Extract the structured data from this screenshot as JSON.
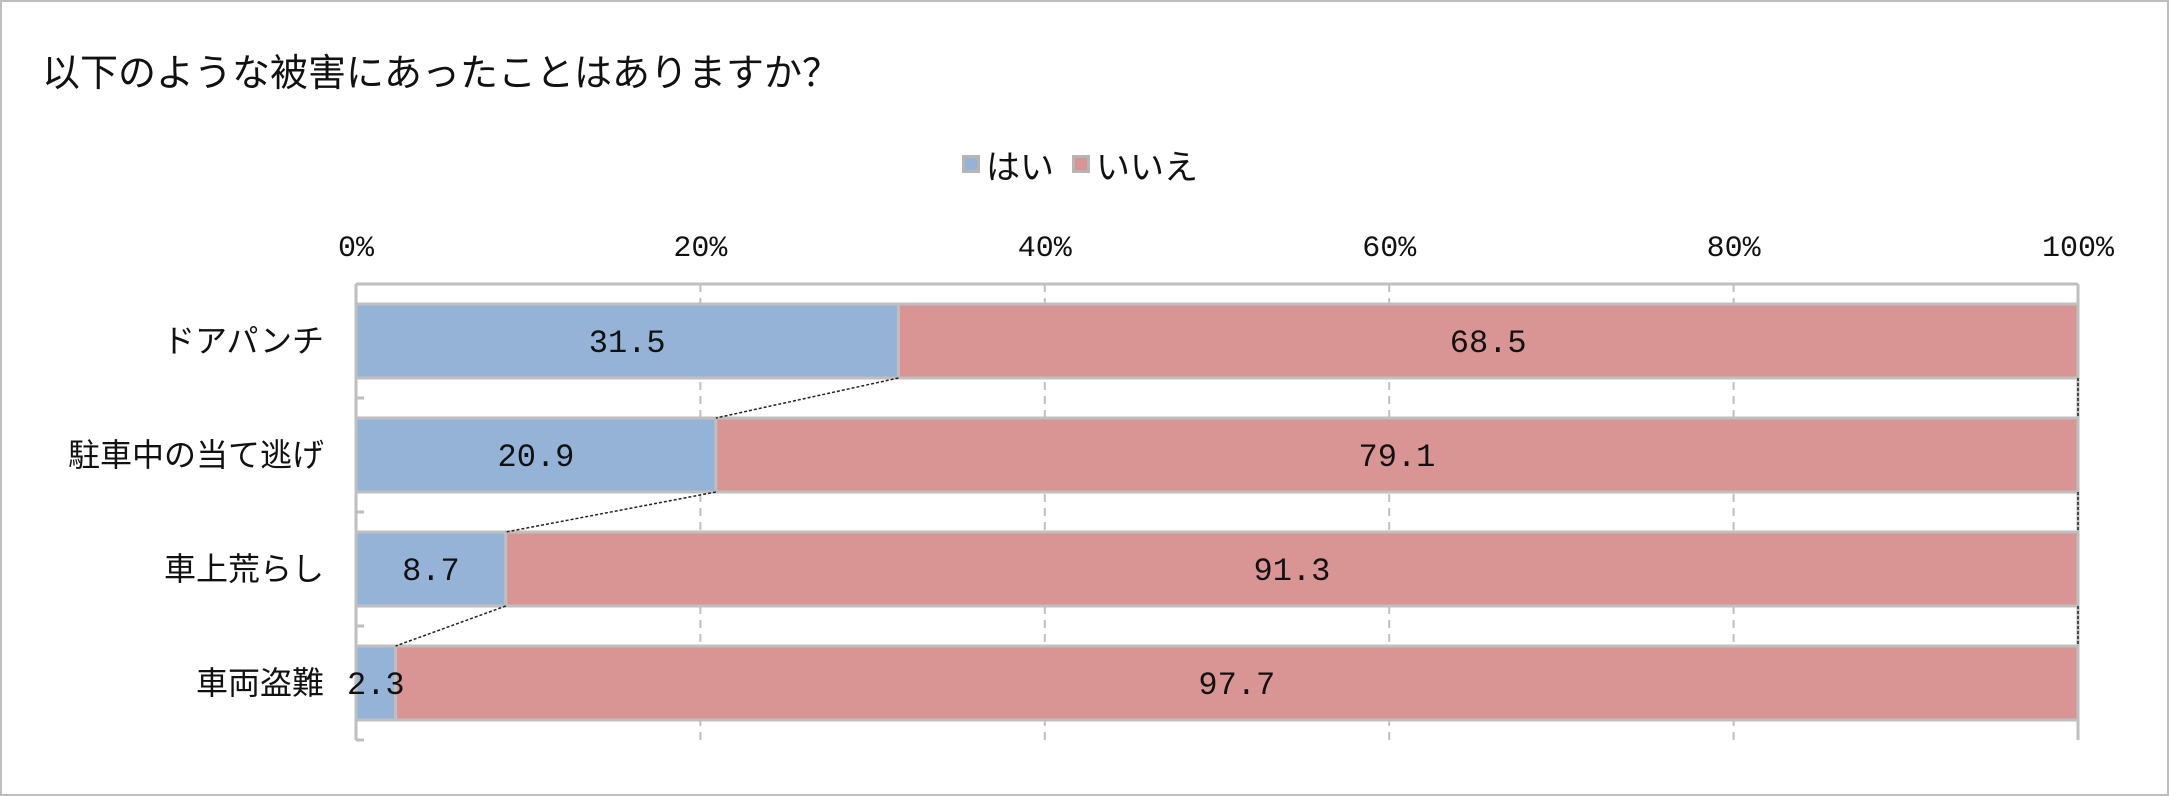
{
  "chart_data": {
    "type": "bar",
    "orientation": "horizontal",
    "stacked": "percent",
    "title": "以下のような被害にあったことはありますか？",
    "categories": [
      "ドアパンチ",
      "駐車中の当て逃げ",
      "車上荒らし",
      "車両盗難"
    ],
    "series": [
      {
        "name": "はい",
        "values": [
          31.5,
          20.9,
          8.7,
          2.3
        ],
        "labels": [
          "31.5",
          "20.9",
          "8.7",
          "2.3"
        ],
        "color": "#95b3d7"
      },
      {
        "name": "いいえ",
        "values": [
          68.5,
          79.1,
          91.3,
          97.7
        ],
        "labels": [
          "68.5",
          "79.1",
          "91.3",
          "97.7"
        ],
        "color": "#d99594"
      }
    ],
    "xlim": [
      0,
      100
    ],
    "xticks": [
      "0%",
      "20%",
      "40%",
      "60%",
      "80%",
      "100%"
    ],
    "axis_position": "top",
    "legend_position": "top",
    "grid": "vertical dashed",
    "series_lines": true
  }
}
